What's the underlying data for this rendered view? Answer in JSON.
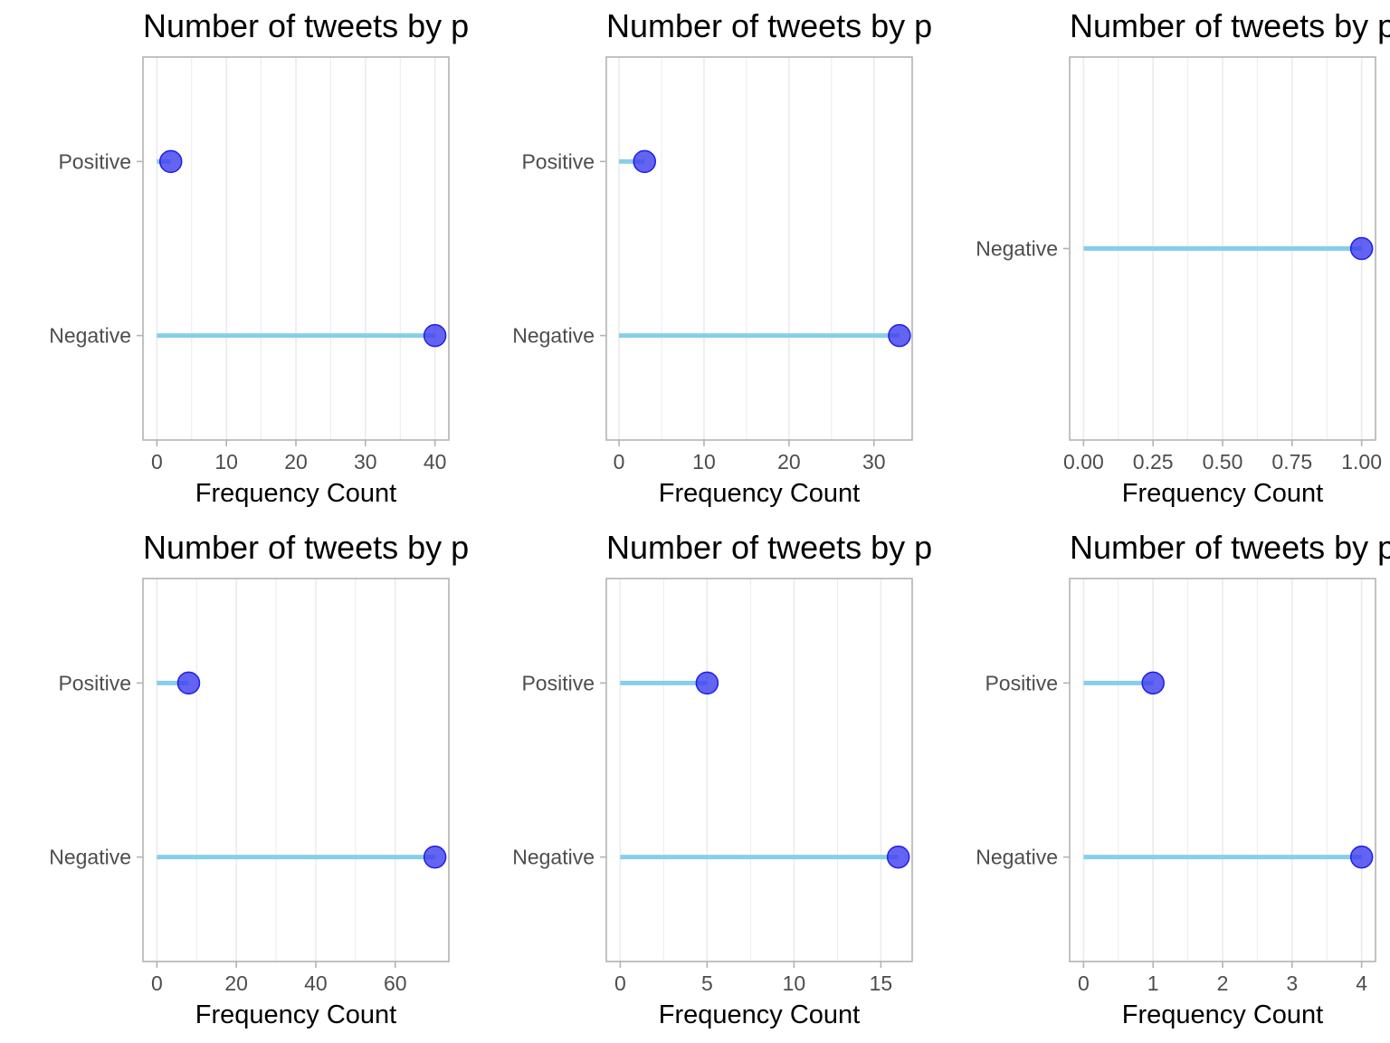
{
  "chart_data": [
    {
      "type": "lollipop",
      "title": "Number of tweets by p",
      "xlabel": "Frequency Count",
      "ylabel": "",
      "categories": [
        "Positive",
        "Negative"
      ],
      "values": [
        2,
        40
      ],
      "xlim": [
        -2,
        42
      ],
      "xticks": [
        0,
        10,
        20,
        30,
        40
      ],
      "xtick_labels": [
        "0",
        "10",
        "20",
        "30",
        "40"
      ],
      "grid": true
    },
    {
      "type": "lollipop",
      "title": "Number of tweets by p",
      "xlabel": "Frequency Count",
      "ylabel": "",
      "categories": [
        "Positive",
        "Negative"
      ],
      "values": [
        3,
        33
      ],
      "xlim": [
        -1.5,
        34.5
      ],
      "xticks": [
        0,
        10,
        20,
        30
      ],
      "xtick_labels": [
        "0",
        "10",
        "20",
        "30"
      ],
      "grid": true
    },
    {
      "type": "lollipop",
      "title": "Number of tweets by p",
      "xlabel": "Frequency Count",
      "ylabel": "",
      "categories": [
        "Negative"
      ],
      "values": [
        1
      ],
      "xlim": [
        -0.05,
        1.05
      ],
      "xticks": [
        0,
        0.25,
        0.5,
        0.75,
        1
      ],
      "xtick_labels": [
        "0.00",
        "0.25",
        "0.50",
        "0.75",
        "1.00"
      ],
      "grid": true
    },
    {
      "type": "lollipop",
      "title": "Number of tweets by p",
      "xlabel": "Frequency Count",
      "ylabel": "",
      "categories": [
        "Positive",
        "Negative"
      ],
      "values": [
        8,
        70
      ],
      "xlim": [
        -3.5,
        73.5
      ],
      "xticks": [
        0,
        20,
        40,
        60
      ],
      "xtick_labels": [
        "0",
        "20",
        "40",
        "60"
      ],
      "grid": true
    },
    {
      "type": "lollipop",
      "title": "Number of tweets by p",
      "xlabel": "Frequency Count",
      "ylabel": "",
      "categories": [
        "Positive",
        "Negative"
      ],
      "values": [
        5,
        16
      ],
      "xlim": [
        -0.8,
        16.8
      ],
      "xticks": [
        0,
        5,
        10,
        15
      ],
      "xtick_labels": [
        "0",
        "5",
        "10",
        "15"
      ],
      "grid": true
    },
    {
      "type": "lollipop",
      "title": "Number of tweets by p",
      "xlabel": "Frequency Count",
      "ylabel": "",
      "categories": [
        "Positive",
        "Negative"
      ],
      "values": [
        1,
        4
      ],
      "xlim": [
        -0.2,
        4.2
      ],
      "xticks": [
        0,
        1,
        2,
        3,
        4
      ],
      "xtick_labels": [
        "0",
        "1",
        "2",
        "3",
        "4"
      ],
      "grid": true
    }
  ],
  "colors": {
    "stem": "#87ceeb",
    "point_fill": "#3d3df0",
    "point_edge": "#1f1fe6",
    "grid": "#ebebeb",
    "panel_border": "#b3b3b3",
    "tick_text": "#4d4d4d"
  }
}
